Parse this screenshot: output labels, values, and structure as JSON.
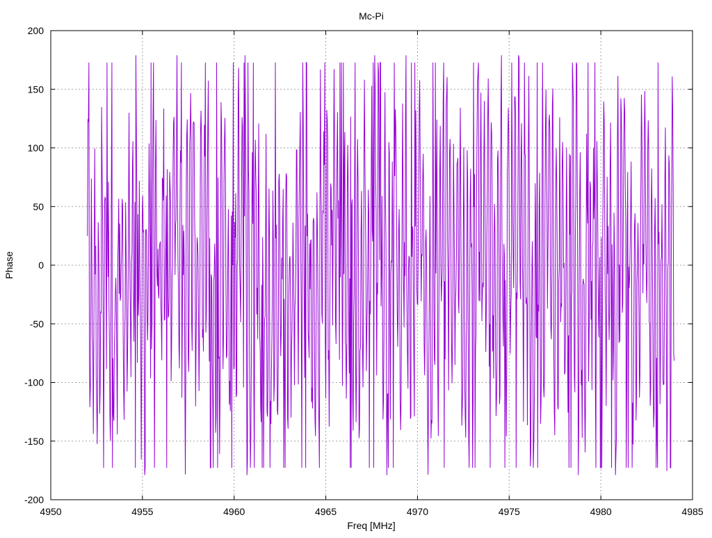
{
  "chart_data": {
    "type": "line",
    "title": "Mc-Pi",
    "xlabel": "Freq [MHz]",
    "ylabel": "Phase",
    "xlim": [
      4950,
      4985
    ],
    "ylim": [
      -200,
      200
    ],
    "x_ticks": [
      "4950",
      "4955",
      "4960",
      "4965",
      "4970",
      "4975",
      "4980",
      "4985"
    ],
    "y_ticks": [
      "200",
      "150",
      "100",
      "50",
      "0",
      "-50",
      "-100",
      "-150",
      "-200"
    ],
    "grid": true,
    "legend": "none",
    "series": [
      {
        "color": "#9400d3",
        "x_start": 4952,
        "x_end": 4984,
        "point_count": 1200,
        "amplitude": 180,
        "note": "Noisy phase trace oscillating between about -180 and 180 across the full band"
      }
    ]
  }
}
